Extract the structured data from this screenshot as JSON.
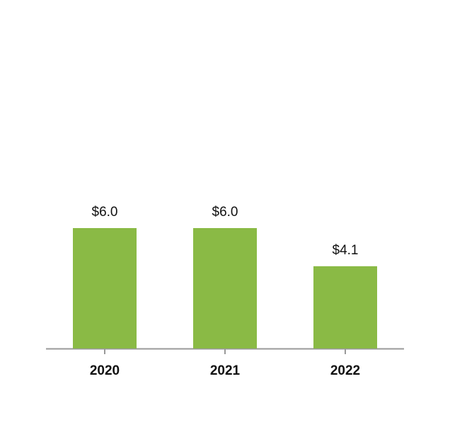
{
  "chart_data": {
    "type": "bar",
    "categories": [
      "2020",
      "2021",
      "2022"
    ],
    "values": [
      6.0,
      6.0,
      4.1
    ],
    "value_labels": [
      "$6.0",
      "$6.0",
      "$4.1"
    ],
    "color": "#8aba45"
  }
}
